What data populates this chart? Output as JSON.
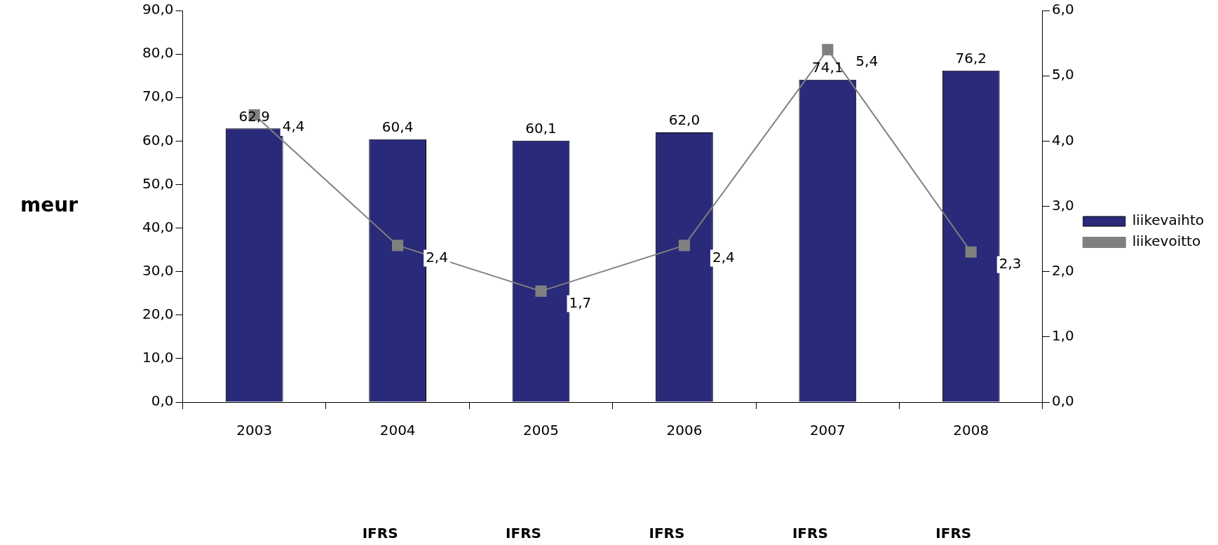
{
  "chart_data": {
    "type": "bar",
    "ylabel": "meur",
    "categories": [
      "2003",
      "2004",
      "2005",
      "2006",
      "2007",
      "2008"
    ],
    "series": [
      {
        "name": "liikevaihto",
        "color": "#2a2a7a",
        "values": [
          62.9,
          60.4,
          60.1,
          62.0,
          74.1,
          76.2
        ],
        "value_labels": [
          "62,9",
          "60,4",
          "60,1",
          "62,0",
          "74,1",
          "76,2"
        ]
      },
      {
        "name": "liikevoitto",
        "type": "line",
        "axis": "y2",
        "color": "#808080",
        "marker": "square",
        "values": [
          4.4,
          2.4,
          1.7,
          2.4,
          5.4,
          2.3
        ],
        "value_labels": [
          "4,4",
          "2,4",
          "1,7",
          "2,4",
          "5,4",
          "2,3"
        ]
      }
    ],
    "ylim": [
      0,
      90
    ],
    "yticks": [
      {
        "value": 0,
        "label": "0,0"
      },
      {
        "value": 10,
        "label": "10,0"
      },
      {
        "value": 20,
        "label": "20,0"
      },
      {
        "value": 30,
        "label": "30,0"
      },
      {
        "value": 40,
        "label": "40,0"
      },
      {
        "value": 50,
        "label": "50,0"
      },
      {
        "value": 60,
        "label": "60,0"
      },
      {
        "value": 70,
        "label": "70,0"
      },
      {
        "value": 80,
        "label": "80,0"
      },
      {
        "value": 90,
        "label": "90,0"
      }
    ],
    "y2lim": [
      0,
      6
    ],
    "y2ticks": [
      {
        "value": 0,
        "label": "0,0"
      },
      {
        "value": 1,
        "label": "1,0"
      },
      {
        "value": 2,
        "label": "2,0"
      },
      {
        "value": 3,
        "label": "3,0"
      },
      {
        "value": 4,
        "label": "4,0"
      },
      {
        "value": 5,
        "label": "5,0"
      },
      {
        "value": 6,
        "label": "6,0"
      }
    ],
    "annotations": [
      "IFRS",
      "IFRS",
      "IFRS",
      "IFRS",
      "IFRS"
    ],
    "grid": false,
    "legend": "right"
  }
}
